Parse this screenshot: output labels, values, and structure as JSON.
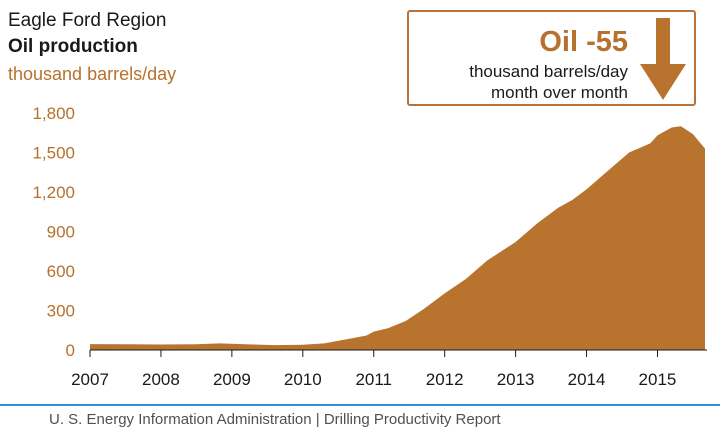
{
  "colors": {
    "fill": "#b8732f",
    "accent_text": "#b7712e",
    "axis": "#1a1a1a",
    "footer_rule": "#2f8fd8"
  },
  "header": {
    "region": "Eagle Ford Region",
    "title": "Oil production",
    "unit": "thousand barrels/day"
  },
  "callout": {
    "value": "Oil -55",
    "line1": "thousand barrels/day",
    "line2": "month over month",
    "icon": "down-arrow-icon"
  },
  "footer": {
    "text": "U. S. Energy Information Administration  |  Drilling Productivity Report"
  },
  "chart_data": {
    "type": "area",
    "ylabel": "thousand barrels/day",
    "ylim": [
      0,
      1800
    ],
    "yticks": [
      0,
      300,
      600,
      900,
      1200,
      1500,
      1800
    ],
    "ytick_labels": [
      "0",
      "300",
      "600",
      "900",
      "1,200",
      "1,500",
      "1,800"
    ],
    "xlim": [
      2007,
      2015.67
    ],
    "xticks": [
      2007,
      2008,
      2009,
      2010,
      2011,
      2012,
      2013,
      2014,
      2015
    ],
    "xtick_labels": [
      "2007",
      "2008",
      "2009",
      "2010",
      "2011",
      "2012",
      "2013",
      "2014",
      "2015"
    ],
    "grid": false,
    "series": [
      {
        "values": [
          [
            2007.0,
            45
          ],
          [
            2007.5,
            43
          ],
          [
            2008.0,
            42
          ],
          [
            2008.5,
            43
          ],
          [
            2008.83,
            50
          ],
          [
            2009.3,
            42
          ],
          [
            2009.6,
            37
          ],
          [
            2010.0,
            40
          ],
          [
            2010.3,
            50
          ],
          [
            2010.6,
            80
          ],
          [
            2010.9,
            110
          ],
          [
            2011.0,
            140
          ],
          [
            2011.2,
            165
          ],
          [
            2011.45,
            220
          ],
          [
            2011.7,
            310
          ],
          [
            2012.0,
            430
          ],
          [
            2012.3,
            540
          ],
          [
            2012.6,
            680
          ],
          [
            2013.0,
            820
          ],
          [
            2013.3,
            960
          ],
          [
            2013.6,
            1080
          ],
          [
            2013.8,
            1140
          ],
          [
            2014.0,
            1220
          ],
          [
            2014.3,
            1360
          ],
          [
            2014.6,
            1500
          ],
          [
            2014.9,
            1570
          ],
          [
            2015.0,
            1630
          ],
          [
            2015.2,
            1690
          ],
          [
            2015.33,
            1700
          ],
          [
            2015.5,
            1640
          ],
          [
            2015.67,
            1530
          ]
        ]
      }
    ]
  }
}
